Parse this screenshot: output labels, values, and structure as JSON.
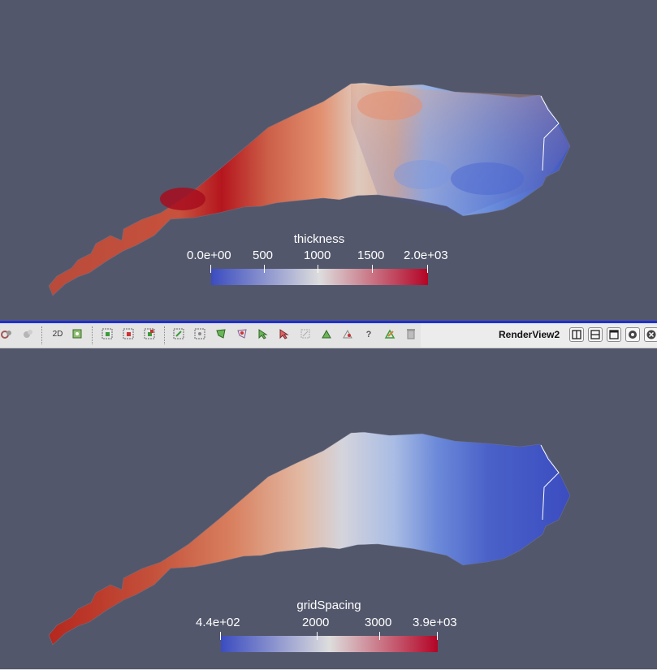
{
  "views": {
    "top": {
      "legend": {
        "title": "thickness",
        "tick_labels": [
          "0.0e+00",
          "500",
          "1000",
          "1500",
          "2.0e+03"
        ]
      },
      "colormap": [
        "#3b4cc0",
        "#dddddd",
        "#b40426"
      ]
    },
    "bottom": {
      "legend": {
        "title": "gridSpacing",
        "tick_labels": [
          "4.4e+02",
          "2000",
          "3000",
          "3.9e+03"
        ]
      },
      "colormap": [
        "#3b4cc0",
        "#dddddd",
        "#b40426"
      ]
    }
  },
  "toolbar": {
    "view_label": "RenderView2",
    "mode_2d_label": "2D",
    "query_label": "?"
  },
  "icons": {
    "toolbar": [
      "camera-link-icon",
      "camera-undo-icon",
      "toggle-2d-icon",
      "adjust-camera-icon",
      "select-cells-icon",
      "select-points-icon",
      "select-block-icon",
      "frustum-cells-icon",
      "frustum-points-icon",
      "polygon-cells-icon",
      "polygon-points-icon",
      "interactive-select-icon",
      "hover-cells-icon",
      "hover-points-icon",
      "grow-selection-icon",
      "shrink-selection-icon",
      "clear-selection-icon",
      "find-data-icon",
      "query-icon",
      "edit-annotations-icon",
      "delete-icon"
    ],
    "layout": [
      "split-horizontal-icon",
      "split-vertical-icon",
      "maximize-icon",
      "restore-icon",
      "close-icon"
    ]
  },
  "colors": {
    "background": "#52576b",
    "active_view_border": "#1d2fd6"
  }
}
